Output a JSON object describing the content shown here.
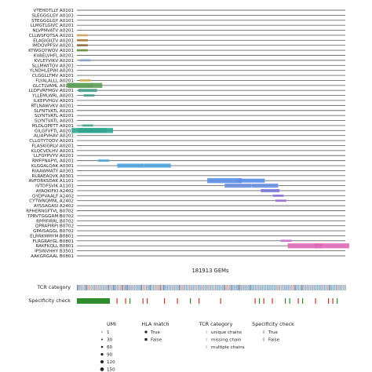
{
  "chart_data": {
    "type": "scatter",
    "xlabel": "181913 GEMs",
    "rows": [
      "VTEHDTLLY A0101",
      "SLEGGGLGY A0101",
      "STEGGGLGY A0101",
      "LLMGTLGIVC A0201",
      "NLVPMVATV A0201",
      "CLLWSFQTSA A0201",
      "ELAGIGILTV A0201",
      "IMDQVPFSV A0201",
      "KTWGQYWQV A0201",
      "KVAELVHFL A0201",
      "KVLEYVIKV A0201",
      "SLLMWITQV A0201",
      "YLNDHLEPWI A0201",
      "CLGGLLTMV A0201",
      "FLYALALLL A0201",
      "GLCTLVAML A0201",
      "LLDFVRFMGV A0201",
      "YLLEMLWRL A0201",
      "ILKEPVHGV A0201",
      "RTLNAWVKV A0201",
      "SLFNTVATL A0201",
      "SLYNTVATL A0201",
      "SLYNTVATL A0201",
      "MLDLQPETT A0201",
      "GILGFVFTL A0201",
      "ALIAPVHAV A0201",
      "CLLGTYTQDV A0201",
      "FLASKIGRLV A0201",
      "KLQCVDLHV A0201",
      "LLFGYPVYV A0201",
      "RMFPNAPYL A0201",
      "KLGGALQAK A0301",
      "RIAAWMATY A0301",
      "RLRAEAQVK A0301",
      "AVFDRKSDAK A1101",
      "IVTDFSVIK A1101",
      "AYAQKIFKI A2402",
      "QYDPVAALF A2402",
      "CYTWNQMNL A2402",
      "AYSSAGASI A2402",
      "RPHERNGFTVL B0702",
      "TPRVTGGGAM B0702",
      "RPPIFIRRL B0702",
      "QPRAPIRPI B0702",
      "GPAISAGGL B0702",
      "ELRRKMMYM B0801",
      "FLRGRAYGL B0801",
      "RAKFKQLL B0801",
      "IPSINVHHY B3501",
      "AAKGRGAAL B0801"
    ],
    "cells": [
      {
        "row": 5,
        "pos": 0.02,
        "color": "#d6a36a",
        "size": 1
      },
      {
        "row": 6,
        "pos": 0.02,
        "color": "#b07a3a",
        "size": 1
      },
      {
        "row": 7,
        "pos": 0.02,
        "color": "#8b6a3a",
        "size": 1
      },
      {
        "row": 8,
        "pos": 0.02,
        "color": "#6b8f3a",
        "size": 1
      },
      {
        "row": 10,
        "pos": 0.03,
        "color": "#8aa0c8",
        "size": 1
      },
      {
        "row": 14,
        "pos": 0.03,
        "color": "#d0b04a",
        "size": 1
      },
      {
        "row": 15,
        "pos": 0.01,
        "color": "#6fa86a",
        "size": 3
      },
      {
        "row": 15,
        "pos": 0.03,
        "color": "#5f9e5a",
        "size": 4
      },
      {
        "row": 16,
        "pos": 0.04,
        "color": "#4a9e8f",
        "size": 2
      },
      {
        "row": 17,
        "pos": 0.045,
        "color": "#3f9a8a",
        "size": 1
      },
      {
        "row": 23,
        "pos": 0.04,
        "color": "#3aa58f",
        "size": 1
      },
      {
        "row": 24,
        "pos": 0.045,
        "color": "#2fa58f",
        "size": 4
      },
      {
        "row": 24,
        "pos": 0.07,
        "color": "#2fa58f",
        "size": 4
      },
      {
        "row": 30,
        "pos": 0.1,
        "color": "#4aa3d8",
        "size": 1
      },
      {
        "row": 31,
        "pos": 0.2,
        "color": "#4fa3dd",
        "size": 3
      },
      {
        "row": 31,
        "pos": 0.3,
        "color": "#4fa3dd",
        "size": 3
      },
      {
        "row": 34,
        "pos": 0.55,
        "color": "#5b8fe8",
        "size": 4
      },
      {
        "row": 34,
        "pos": 0.65,
        "color": "#5b8fe8",
        "size": 3
      },
      {
        "row": 35,
        "pos": 0.6,
        "color": "#6b8fe0",
        "size": 3
      },
      {
        "row": 35,
        "pos": 0.7,
        "color": "#6b8fe0",
        "size": 3
      },
      {
        "row": 36,
        "pos": 0.72,
        "color": "#7a78d8",
        "size": 2
      },
      {
        "row": 37,
        "pos": 0.75,
        "color": "#8b6fd8",
        "size": 1
      },
      {
        "row": 38,
        "pos": 0.76,
        "color": "#9a6fd8",
        "size": 1
      },
      {
        "row": 46,
        "pos": 0.78,
        "color": "#c870d0",
        "size": 1
      },
      {
        "row": 47,
        "pos": 0.85,
        "color": "#e06ab8",
        "size": 4
      },
      {
        "row": 47,
        "pos": 0.95,
        "color": "#e06ab8",
        "size": 4
      }
    ],
    "tcr_category_label": "TCR category",
    "specificity_label": "Specificity check",
    "legends": [
      {
        "title": "UMI",
        "entries": [
          "1",
          "30",
          "60",
          "90",
          "120",
          "150"
        ]
      },
      {
        "title": "HLA match",
        "entries": [
          "True",
          "False"
        ]
      },
      {
        "title": "TCR category",
        "entries": [
          "unique chains",
          "missing chain",
          "multiple chains"
        ]
      },
      {
        "title": "Specificity check",
        "entries": [
          "True",
          "False"
        ]
      }
    ],
    "grid": false
  }
}
